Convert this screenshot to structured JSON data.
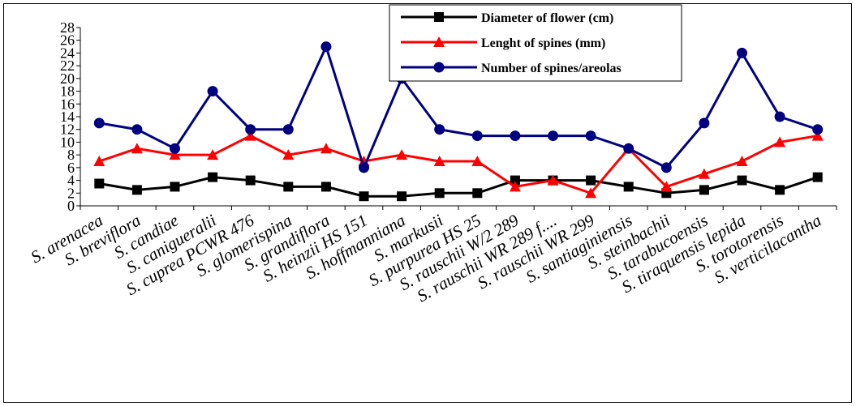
{
  "chart_data": {
    "type": "line",
    "categories": [
      "S. arenacea",
      "S. breviflora",
      "S. candiae",
      "S. canigueralii",
      "S. cuprea PCWR 476",
      "S. glomerispina",
      "S. grandiflora",
      "S. heinzii HS 151",
      "S. hoffmanniana",
      "S. markusii",
      "S. purpurea HS 25",
      "S. rauschii W/2 289",
      "S. rauschii WR 289 f....",
      "S. rauschii WR 299",
      "S. santiaginiensis",
      "S. steinbachii",
      "S. tarabucoensis",
      "S. tiraquensis lepida",
      "S. torotorensis",
      "S. verticilacantha"
    ],
    "series": [
      {
        "name": "Diameter of flower (cm)",
        "color": "#000000",
        "marker": "square",
        "values": [
          3.5,
          2.5,
          3,
          4.5,
          4,
          3,
          3,
          1.5,
          1.5,
          2,
          2,
          4,
          4,
          4,
          3,
          2,
          2.5,
          4,
          2.5,
          4.5
        ]
      },
      {
        "name": "Lenght of spines (mm)",
        "color": "#ff0000",
        "marker": "triangle",
        "values": [
          7,
          9,
          8,
          8,
          11,
          8,
          9,
          7,
          8,
          7,
          7,
          3,
          4,
          2,
          9,
          3,
          5,
          7,
          10,
          11
        ]
      },
      {
        "name": "Number of spines/areolas",
        "color": "#000080",
        "marker": "circle",
        "values": [
          13,
          12,
          9,
          18,
          12,
          12,
          25,
          6,
          20,
          12,
          11,
          11,
          11,
          11,
          9,
          6,
          13,
          24,
          14,
          12
        ]
      }
    ],
    "yticks": [
      0,
      2,
      4,
      6,
      8,
      10,
      12,
      14,
      16,
      18,
      20,
      22,
      24,
      26,
      28
    ],
    "ylim": [
      0,
      28
    ],
    "grid": false,
    "legend_position": "top-right"
  }
}
